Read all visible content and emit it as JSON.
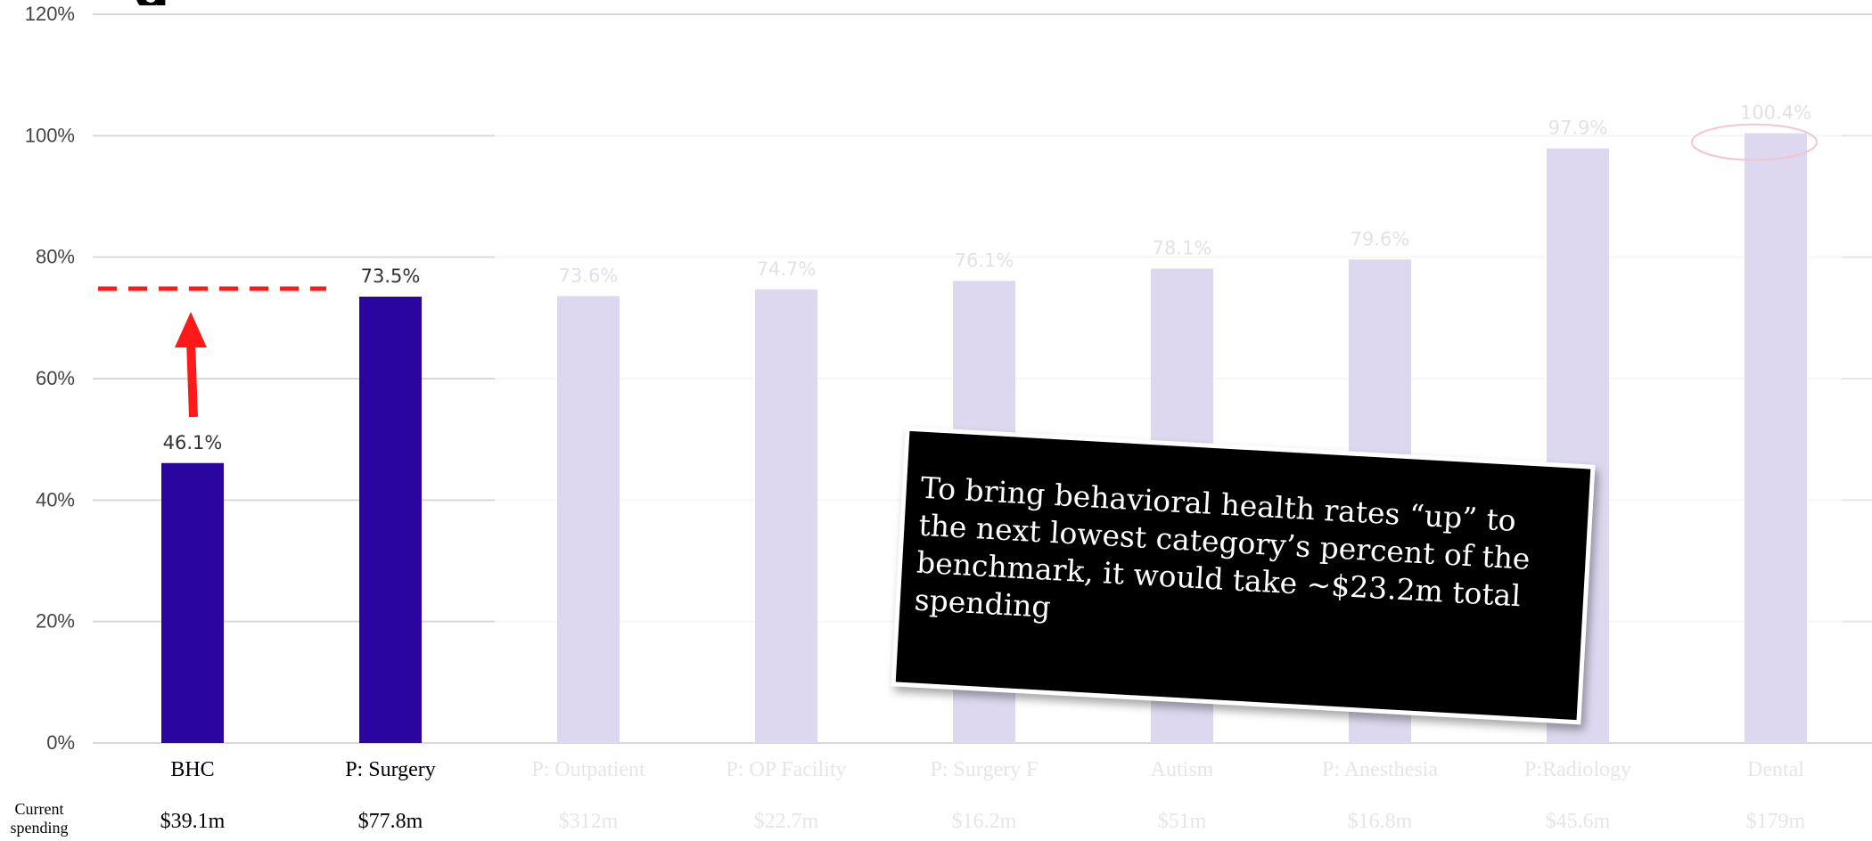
{
  "chart_data": {
    "type": "bar",
    "categories": [
      "BHC",
      "P: Surgery",
      "P: Outpatient",
      "P: OP Facility",
      "P: Surgery F",
      "Autism",
      "P: Anesthesia",
      "P:Radiology",
      "Dental"
    ],
    "values": [
      46.1,
      73.5,
      73.6,
      74.7,
      76.1,
      78.1,
      79.6,
      97.9,
      100.4
    ],
    "data_labels": [
      "46.1%",
      "73.5%",
      "73.6%",
      "74.7%",
      "76.1%",
      "78.1%",
      "79.6%",
      "97.9%",
      "100.4%"
    ],
    "current_spending": [
      "$39.1m",
      "$77.8m",
      "$312m",
      "$22.7m",
      "$16.2m",
      "$51m",
      "$16.8m",
      "$45.6m",
      "$179m"
    ],
    "highlighted": [
      true,
      true,
      false,
      false,
      false,
      false,
      false,
      false,
      false
    ],
    "y_ticks": [
      "0%",
      "20%",
      "40%",
      "60%",
      "80%",
      "100%",
      "120%"
    ],
    "ylim": [
      0,
      120
    ],
    "grid": true,
    "target_line_value": 73.5,
    "circled_category": "Dental",
    "colors": {
      "highlight": "#2a05a0",
      "muted": "#ddd8ef",
      "muted_text": "#e2e2e2",
      "target_line": "#ff1a1a",
      "arrow": "#ff1a1a",
      "circle": "#f0c6cf"
    }
  },
  "row_label": "Current spending",
  "title_fragment": "g",
  "callout": {
    "text": "To bring behavioral health rates “up” to the next lowest category’s percent of the benchmark, it would take ~$23.2m total spending"
  }
}
